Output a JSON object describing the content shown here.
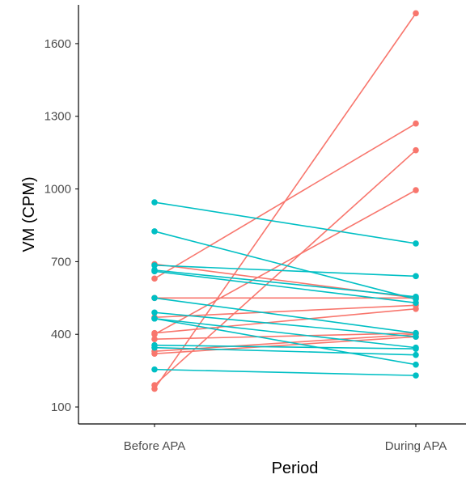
{
  "chart_data": {
    "type": "line",
    "xlabel": "Period",
    "ylabel": "VM (CPM)",
    "categories": [
      "Before APA",
      "During APA"
    ],
    "ylim": [
      30,
      1760
    ],
    "yticks": [
      100,
      400,
      700,
      1000,
      1300,
      1600
    ],
    "grid": false,
    "legend": "none",
    "colors": {
      "group_a": "#F8766D",
      "group_b": "#00BFC4",
      "axis": "#000000",
      "tick_text": "#4d4d4d"
    },
    "series": [
      {
        "group": "red",
        "values": [
          175,
          1725
        ]
      },
      {
        "group": "red",
        "values": [
          630,
          1270
        ]
      },
      {
        "group": "red",
        "values": [
          190,
          1160
        ]
      },
      {
        "group": "red",
        "values": [
          400,
          995
        ]
      },
      {
        "group": "red",
        "values": [
          690,
          550
        ]
      },
      {
        "group": "red",
        "values": [
          550,
          550
        ]
      },
      {
        "group": "red",
        "values": [
          470,
          520
        ]
      },
      {
        "group": "red",
        "values": [
          405,
          505
        ]
      },
      {
        "group": "red",
        "values": [
          380,
          405
        ]
      },
      {
        "group": "red",
        "values": [
          330,
          400
        ]
      },
      {
        "group": "red",
        "values": [
          320,
          390
        ]
      },
      {
        "group": "teal",
        "values": [
          945,
          775
        ]
      },
      {
        "group": "teal",
        "values": [
          825,
          545
        ]
      },
      {
        "group": "teal",
        "values": [
          685,
          640
        ]
      },
      {
        "group": "teal",
        "values": [
          665,
          555
        ]
      },
      {
        "group": "teal",
        "values": [
          660,
          530
        ]
      },
      {
        "group": "teal",
        "values": [
          550,
          405
        ]
      },
      {
        "group": "teal",
        "values": [
          490,
          390
        ]
      },
      {
        "group": "teal",
        "values": [
          465,
          345
        ]
      },
      {
        "group": "teal",
        "values": [
          465,
          275
        ]
      },
      {
        "group": "teal",
        "values": [
          355,
          340
        ]
      },
      {
        "group": "teal",
        "values": [
          345,
          315
        ]
      },
      {
        "group": "teal",
        "values": [
          255,
          230
        ]
      }
    ]
  }
}
